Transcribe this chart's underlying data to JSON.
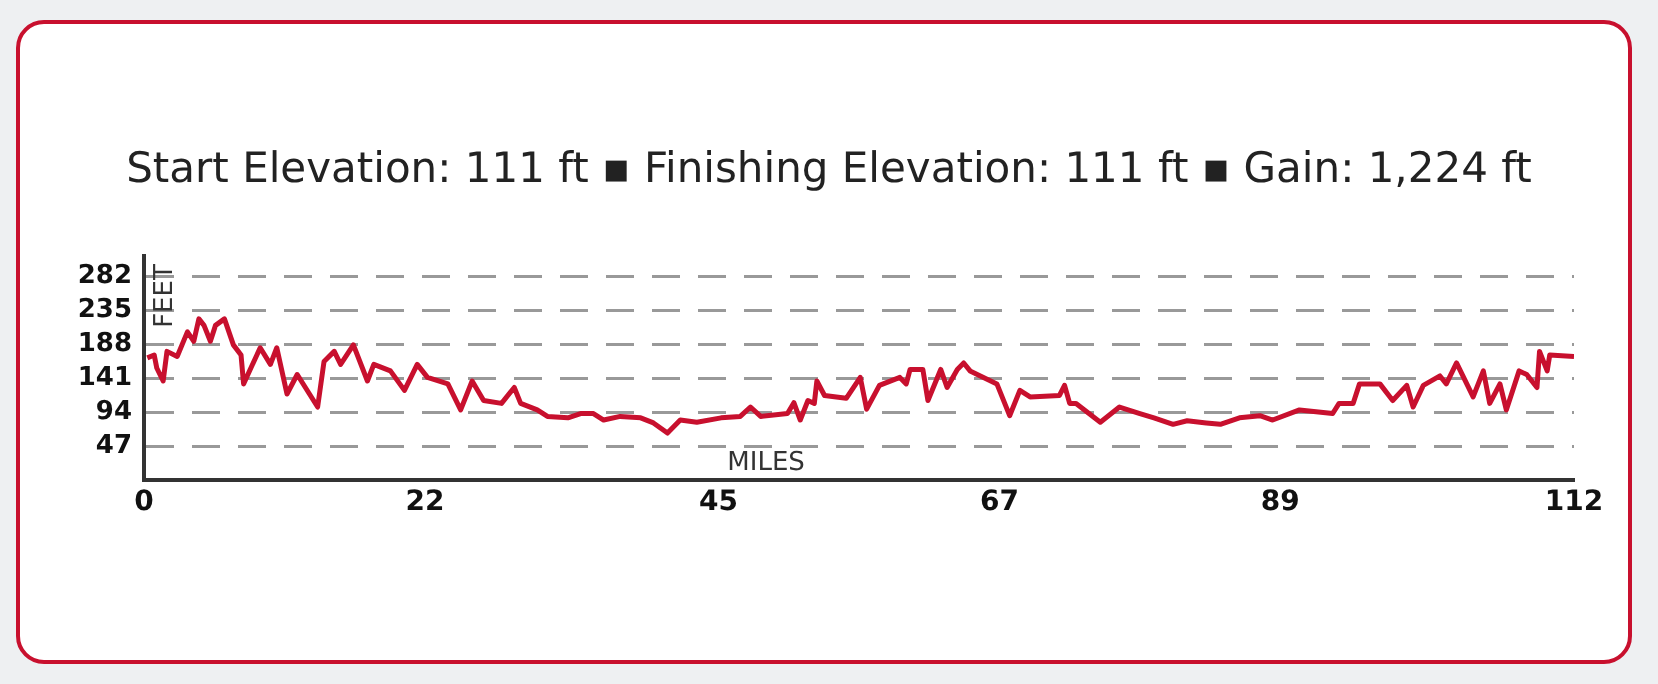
{
  "chart_data": {
    "type": "line",
    "title": "Start Elevation: 111 ft ▪ Finishing Elevation: 111 ft ▪ Gain: 1,224 ft",
    "xlabel": "MILES",
    "ylabel": "FEET",
    "x": [
      0.26,
      0.8,
      1.0,
      1.5,
      1.8,
      2.6,
      3.4,
      3.9,
      4.3,
      4.7,
      5.2,
      5.6,
      6.3,
      7.0,
      7.6,
      7.8,
      9.1,
      9.9,
      10.4,
      11.2,
      12.0,
      13.6,
      14.1,
      14.9,
      15.4,
      16.4,
      17.5,
      18.0,
      19.3,
      20.4,
      21.4,
      22.2,
      23.8,
      24.8,
      25.7,
      26.6,
      28.0,
      29.0,
      29.5,
      30.8,
      31.6,
      33.2,
      34.2,
      35.2,
      36.0,
      37.3,
      38.9,
      39.9,
      41.0,
      42.0,
      43.3,
      45.2,
      46.7,
      47.5,
      48.3,
      50.4,
      50.9,
      51.4,
      52.0,
      52.5,
      52.7,
      53.3,
      55.0,
      56.1,
      56.6,
      57.6,
      59.2,
      59.7,
      60.0,
      61.0,
      61.4,
      62.4,
      62.9,
      63.7,
      64.2,
      64.7,
      66.8,
      67.8,
      68.6,
      69.4,
      71.7,
      72.1,
      72.5,
      73.0,
      74.9,
      76.4,
      78.0,
      79.1,
      80.6,
      81.7,
      83.2,
      84.3,
      85.8,
      87.4,
      88.4,
      90.5,
      93.1,
      93.6,
      94.7,
      95.2,
      96.8,
      97.8,
      98.9,
      99.4,
      100.2,
      101.5,
      102.0,
      102.8,
      104.1,
      104.9,
      105.4,
      106.2,
      106.7,
      107.7,
      108.3,
      109.1,
      109.3,
      109.9,
      110.1,
      112.0
    ],
    "series": [
      {
        "color": "#c8102e",
        "values": [
          169,
          173,
          155,
          137,
          178,
          171,
          205,
          192,
          223,
          214,
          192,
          214,
          223,
          187,
          173,
          133,
          183,
          160,
          183,
          119,
          146,
          101,
          164,
          178,
          160,
          187,
          137,
          160,
          151,
          124,
          160,
          142,
          133,
          97,
          137,
          110,
          106,
          128,
          106,
          97,
          88,
          86,
          92,
          92,
          83,
          88,
          86,
          79,
          65,
          83,
          80,
          86,
          88,
          101,
          88,
          92,
          107,
          83,
          110,
          106,
          137,
          117,
          113,
          142,
          98,
          131,
          142,
          133,
          153,
          153,
          110,
          153,
          128,
          153,
          162,
          151,
          133,
          89,
          124,
          115,
          117,
          131,
          106,
          106,
          80,
          101,
          92,
          86,
          77,
          82,
          79,
          77,
          86,
          89,
          83,
          97,
          92,
          106,
          106,
          133,
          133,
          110,
          131,
          101,
          131,
          144,
          133,
          162,
          115,
          151,
          106,
          133,
          97,
          151,
          146,
          128,
          178,
          151,
          173,
          171
        ]
      }
    ],
    "xlim": [
      0,
      112
    ],
    "xticks": [
      0,
      22,
      45,
      67,
      89,
      112
    ],
    "ylim": [
      0,
      310
    ],
    "yticks": [
      47,
      94,
      141,
      188,
      235,
      282
    ],
    "grid": "y",
    "legend": false
  }
}
